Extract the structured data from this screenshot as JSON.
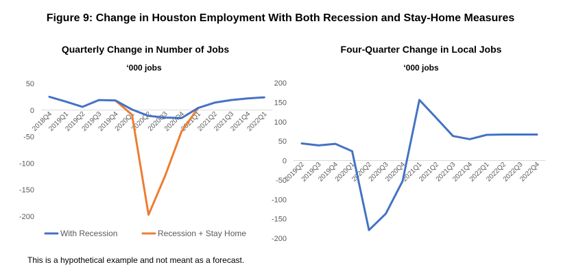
{
  "figure_title": "Figure 9: Change in Houston Employment With Both Recession and Stay-Home Measures",
  "note": "This is a hypothetical example and not meant as a forecast.",
  "colors": {
    "blue": "#4472C4",
    "orange": "#ED7D31",
    "axis": "#D9D9D9",
    "text": "#595959"
  },
  "chart_data": [
    {
      "type": "line",
      "title": "Quarterly Change in Number of Jobs",
      "subtitle": "‘000 jobs",
      "categories": [
        "2018Q4",
        "2019Q1",
        "2019Q2",
        "2019Q3",
        "2019Q4",
        "2020Q1",
        "2020Q2",
        "2020Q3",
        "2020Q4",
        "2021Q1",
        "2021Q2",
        "2021Q3",
        "2021Q4",
        "2022Q1"
      ],
      "ylim": [
        -200,
        50
      ],
      "yticks": [
        50,
        0,
        -50,
        -100,
        -150,
        -200
      ],
      "ytick_labels": [
        "50",
        "0",
        "-50",
        "-100",
        "-150",
        "-200"
      ],
      "grid": false,
      "legend_position": "bottom",
      "series": [
        {
          "name": "With Recession",
          "color": "#4472C4",
          "values": [
            25,
            16,
            6,
            19,
            18,
            1,
            -11,
            -14,
            -15,
            4,
            14,
            19,
            22,
            24
          ]
        },
        {
          "name": "Recession + Stay Home",
          "color": "#ED7D31",
          "values": [
            null,
            null,
            null,
            null,
            18,
            -9,
            -197,
            -124,
            -40,
            4,
            null,
            null,
            null,
            null
          ]
        }
      ]
    },
    {
      "type": "line",
      "title": "Four-Quarter Change in Local Jobs",
      "subtitle": "‘000 jobs",
      "categories": [
        "2019Q2",
        "2019Q3",
        "2019Q4",
        "2020Q1",
        "2020Q2",
        "2020Q3",
        "2020Q4",
        "2021Q1",
        "2021Q2",
        "2021Q3",
        "2021Q4",
        "2022Q1",
        "2022Q2",
        "2022Q3",
        "2022Q4"
      ],
      "ylim": [
        -200,
        200
      ],
      "yticks": [
        200,
        150,
        100,
        50,
        0,
        -50,
        -100,
        -150,
        -200
      ],
      "ytick_labels": [
        "200",
        "150",
        "100",
        "50",
        "0",
        "-50",
        "-100",
        "-150",
        "-200"
      ],
      "grid": false,
      "series": [
        {
          "name": "",
          "color": "#4472C4",
          "values": [
            44,
            39,
            43,
            24,
            -179,
            -137,
            -53,
            156,
            110,
            63,
            55,
            66,
            67,
            67,
            67
          ]
        }
      ]
    }
  ]
}
